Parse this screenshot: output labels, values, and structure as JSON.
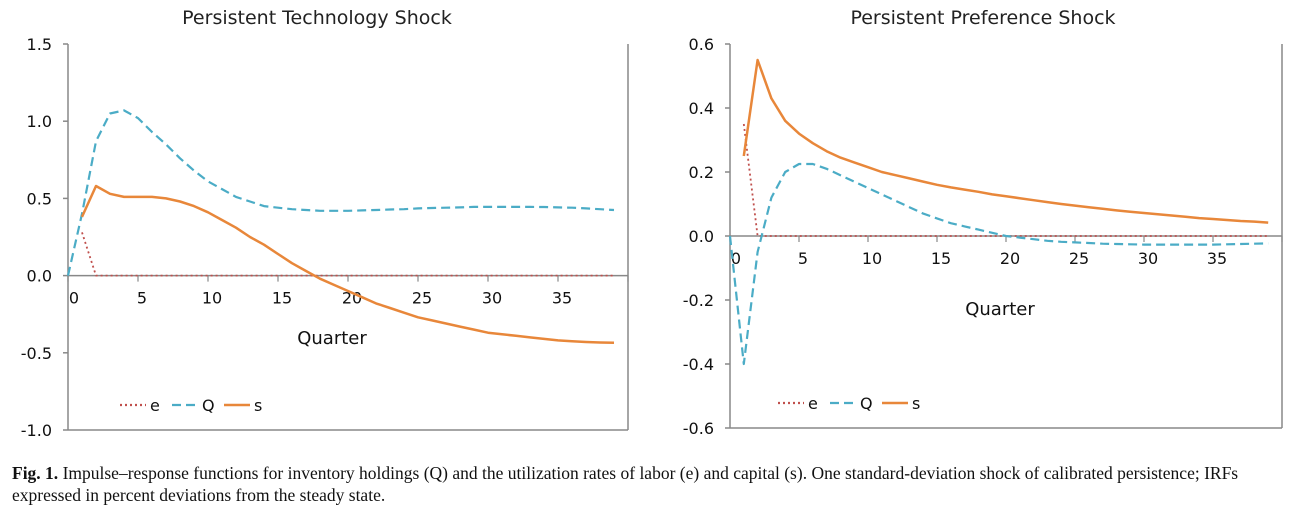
{
  "colors": {
    "e": "#c0504d",
    "Q": "#4bacc6",
    "s": "#e8873a",
    "axis": "#888888"
  },
  "chart_data": [
    {
      "type": "line",
      "title": "Persistent Technology Shock",
      "xlabel": "Quarter",
      "ylabel": "",
      "xlim": [
        0,
        40
      ],
      "ylim": [
        -1.0,
        1.5
      ],
      "xticks": [
        0,
        5,
        10,
        15,
        20,
        25,
        30,
        35
      ],
      "xtick_labels": [
        "0",
        "5",
        "10",
        "15",
        "20",
        "25",
        "30",
        "35"
      ],
      "yticks": [
        1.5,
        1.0,
        0.5,
        0.0,
        -0.5,
        -1.0
      ],
      "ytick_labels": [
        "1.5",
        "1.0",
        "0.5",
        "0.0",
        "-0.5",
        "-1.0"
      ],
      "legend": [
        "e",
        "Q",
        "s"
      ],
      "legend_position": "bottom-left",
      "grid": false,
      "series": [
        {
          "name": "e",
          "style": "dotted",
          "x": [
            1,
            2,
            3,
            39
          ],
          "y": [
            0.28,
            0.0,
            0.0,
            0.0
          ]
        },
        {
          "name": "Q",
          "style": "dashed",
          "x": [
            0,
            1,
            2,
            3,
            4,
            5,
            6,
            7,
            8,
            9,
            10,
            11,
            12,
            13,
            14,
            15,
            16,
            17,
            18,
            19,
            20,
            21,
            22,
            23,
            24,
            25,
            26,
            27,
            28,
            29,
            30,
            31,
            32,
            33,
            34,
            35,
            36,
            37,
            38,
            39
          ],
          "y": [
            0.0,
            0.4,
            0.87,
            1.05,
            1.07,
            1.02,
            0.93,
            0.85,
            0.76,
            0.68,
            0.61,
            0.56,
            0.51,
            0.48,
            0.45,
            0.44,
            0.43,
            0.425,
            0.42,
            0.42,
            0.42,
            0.422,
            0.425,
            0.428,
            0.43,
            0.435,
            0.438,
            0.44,
            0.442,
            0.445,
            0.445,
            0.445,
            0.445,
            0.445,
            0.444,
            0.442,
            0.44,
            0.435,
            0.43,
            0.425
          ]
        },
        {
          "name": "s",
          "style": "solid",
          "x": [
            1,
            2,
            3,
            4,
            5,
            6,
            7,
            8,
            9,
            10,
            11,
            12,
            13,
            14,
            15,
            16,
            17,
            18,
            19,
            20,
            21,
            22,
            23,
            24,
            25,
            26,
            27,
            28,
            29,
            30,
            31,
            32,
            33,
            34,
            35,
            36,
            37,
            38,
            39
          ],
          "y": [
            0.38,
            0.58,
            0.53,
            0.51,
            0.51,
            0.51,
            0.5,
            0.48,
            0.45,
            0.41,
            0.36,
            0.31,
            0.25,
            0.2,
            0.14,
            0.08,
            0.03,
            -0.02,
            -0.06,
            -0.1,
            -0.14,
            -0.18,
            -0.21,
            -0.24,
            -0.27,
            -0.29,
            -0.31,
            -0.33,
            -0.35,
            -0.37,
            -0.38,
            -0.39,
            -0.4,
            -0.41,
            -0.42,
            -0.425,
            -0.43,
            -0.433,
            -0.435
          ]
        }
      ]
    },
    {
      "type": "line",
      "title": "Persistent Preference Shock",
      "xlabel": "Quarter",
      "ylabel": "",
      "xlim": [
        0,
        40
      ],
      "ylim": [
        -0.6,
        0.6
      ],
      "xticks": [
        0,
        5,
        10,
        15,
        20,
        25,
        30,
        35
      ],
      "xtick_labels": [
        "0",
        "5",
        "10",
        "15",
        "20",
        "25",
        "30",
        "35"
      ],
      "yticks": [
        0.6,
        0.4,
        0.2,
        0.0,
        -0.2,
        -0.4,
        -0.6
      ],
      "ytick_labels": [
        "0.6",
        "0.4",
        "0.2",
        "0.0",
        "-0.2",
        "-0.4",
        "-0.6"
      ],
      "legend": [
        "e",
        "Q",
        "s"
      ],
      "legend_position": "bottom-left",
      "grid": false,
      "series": [
        {
          "name": "e",
          "style": "dotted",
          "x": [
            1,
            2,
            3,
            39
          ],
          "y": [
            0.35,
            0.0,
            0.0,
            0.0
          ]
        },
        {
          "name": "Q",
          "style": "dashed",
          "x": [
            0,
            1,
            2,
            3,
            4,
            5,
            6,
            7,
            8,
            9,
            10,
            11,
            12,
            13,
            14,
            15,
            16,
            17,
            18,
            19,
            20,
            21,
            22,
            23,
            24,
            25,
            26,
            27,
            28,
            29,
            30,
            31,
            32,
            33,
            34,
            35,
            36,
            37,
            38,
            39
          ],
          "y": [
            0.0,
            -0.4,
            -0.05,
            0.12,
            0.2,
            0.225,
            0.225,
            0.21,
            0.19,
            0.17,
            0.15,
            0.13,
            0.11,
            0.09,
            0.07,
            0.055,
            0.04,
            0.03,
            0.02,
            0.01,
            0.0,
            -0.005,
            -0.01,
            -0.015,
            -0.018,
            -0.02,
            -0.022,
            -0.024,
            -0.025,
            -0.026,
            -0.027,
            -0.027,
            -0.027,
            -0.027,
            -0.027,
            -0.027,
            -0.026,
            -0.025,
            -0.024,
            -0.023
          ]
        },
        {
          "name": "s",
          "style": "solid",
          "x": [
            1,
            2,
            3,
            4,
            5,
            6,
            7,
            8,
            9,
            10,
            11,
            12,
            13,
            14,
            15,
            16,
            17,
            18,
            19,
            20,
            21,
            22,
            23,
            24,
            25,
            26,
            27,
            28,
            29,
            30,
            31,
            32,
            33,
            34,
            35,
            36,
            37,
            38,
            39
          ],
          "y": [
            0.25,
            0.55,
            0.43,
            0.36,
            0.32,
            0.29,
            0.265,
            0.245,
            0.23,
            0.215,
            0.2,
            0.19,
            0.18,
            0.17,
            0.16,
            0.152,
            0.145,
            0.138,
            0.13,
            0.124,
            0.118,
            0.112,
            0.106,
            0.1,
            0.095,
            0.09,
            0.085,
            0.08,
            0.076,
            0.072,
            0.068,
            0.064,
            0.06,
            0.056,
            0.053,
            0.05,
            0.047,
            0.045,
            0.042
          ]
        }
      ]
    }
  ],
  "caption": {
    "label": "Fig. 1.",
    "text": " Impulse–response functions for inventory holdings (Q) and the utilization rates of labor (e) and capital (s). One standard-deviation shock of calibrated persistence; IRFs expressed in percent deviations from the steady state."
  }
}
